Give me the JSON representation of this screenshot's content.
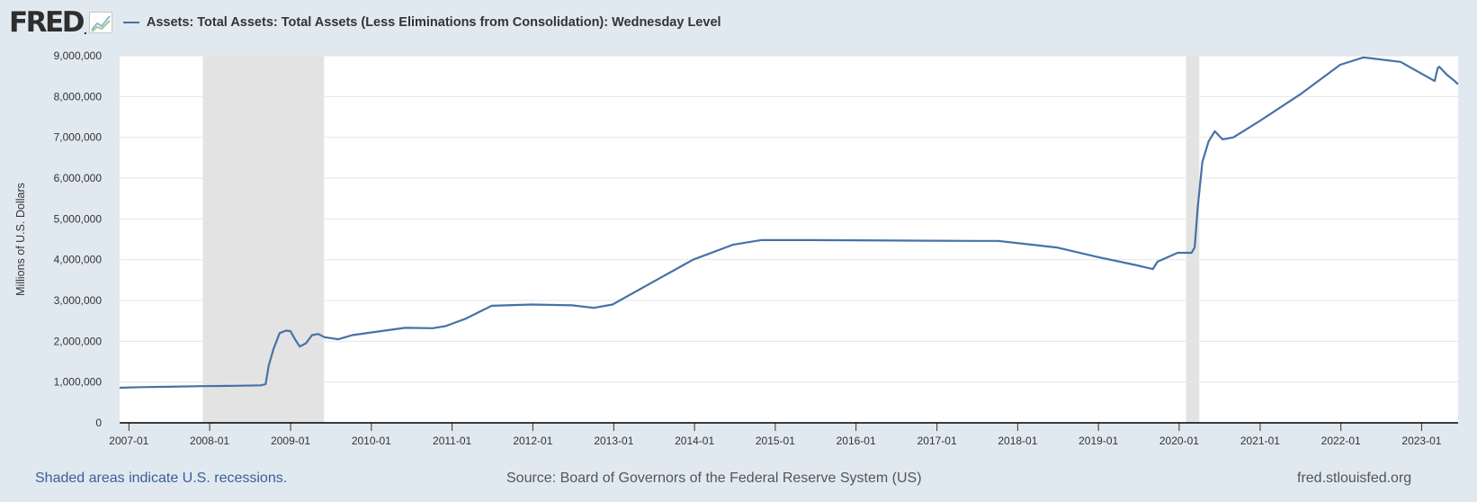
{
  "logo": {
    "text": "FRED",
    "dot": "."
  },
  "legend": {
    "label": "Assets: Total Assets: Total Assets (Less Eliminations from Consolidation): Wednesday Level"
  },
  "footer": {
    "recessions": "Shaded areas indicate U.S. recessions.",
    "source": "Source: Board of Governors of the Federal Reserve System (US)",
    "url": "fred.stlouisfed.org"
  },
  "colors": {
    "line": "#4572a7",
    "recession": "#e3e3e3",
    "background": "#e1e9f0",
    "plot": "#ffffff",
    "grid": "#e6e6e6",
    "axis": "#000000"
  },
  "chart_data": {
    "type": "line",
    "title": "",
    "xlabel": "",
    "ylabel": "Millions of U.S. Dollars",
    "ylim": [
      0,
      9000000
    ],
    "xlim": [
      "2006-11-20",
      "2023-06-15"
    ],
    "yticks": [
      {
        "value": 0,
        "label": "0"
      },
      {
        "value": 1000000,
        "label": "1,000,000"
      },
      {
        "value": 2000000,
        "label": "2,000,000"
      },
      {
        "value": 3000000,
        "label": "3,000,000"
      },
      {
        "value": 4000000,
        "label": "4,000,000"
      },
      {
        "value": 5000000,
        "label": "5,000,000"
      },
      {
        "value": 6000000,
        "label": "6,000,000"
      },
      {
        "value": 7000000,
        "label": "7,000,000"
      },
      {
        "value": 8000000,
        "label": "8,000,000"
      },
      {
        "value": 9000000,
        "label": "9,000,000"
      }
    ],
    "xticks": [
      {
        "date": "2007-01-01",
        "label": "2007-01"
      },
      {
        "date": "2008-01-01",
        "label": "2008-01"
      },
      {
        "date": "2009-01-01",
        "label": "2009-01"
      },
      {
        "date": "2010-01-01",
        "label": "2010-01"
      },
      {
        "date": "2011-01-01",
        "label": "2011-01"
      },
      {
        "date": "2012-01-01",
        "label": "2012-01"
      },
      {
        "date": "2013-01-01",
        "label": "2013-01"
      },
      {
        "date": "2014-01-01",
        "label": "2014-01"
      },
      {
        "date": "2015-01-01",
        "label": "2015-01"
      },
      {
        "date": "2016-01-01",
        "label": "2016-01"
      },
      {
        "date": "2017-01-01",
        "label": "2017-01"
      },
      {
        "date": "2018-01-01",
        "label": "2018-01"
      },
      {
        "date": "2019-01-01",
        "label": "2019-01"
      },
      {
        "date": "2020-01-01",
        "label": "2020-01"
      },
      {
        "date": "2021-01-01",
        "label": "2021-01"
      },
      {
        "date": "2022-01-01",
        "label": "2022-01"
      },
      {
        "date": "2023-01-01",
        "label": "2023-01"
      }
    ],
    "recessions": [
      {
        "start": "2007-12-01",
        "end": "2009-06-01"
      },
      {
        "start": "2020-02-01",
        "end": "2020-04-01"
      }
    ],
    "grid": true,
    "series": [
      {
        "points": [
          [
            "2006-11-20",
            860000
          ],
          [
            "2007-03-01",
            875000
          ],
          [
            "2007-07-01",
            885000
          ],
          [
            "2007-12-01",
            900000
          ],
          [
            "2008-03-01",
            905000
          ],
          [
            "2008-06-01",
            910000
          ],
          [
            "2008-08-20",
            920000
          ],
          [
            "2008-09-10",
            950000
          ],
          [
            "2008-09-24",
            1400000
          ],
          [
            "2008-10-15",
            1800000
          ],
          [
            "2008-11-12",
            2200000
          ],
          [
            "2008-12-10",
            2260000
          ],
          [
            "2008-12-31",
            2250000
          ],
          [
            "2009-01-21",
            2050000
          ],
          [
            "2009-02-11",
            1870000
          ],
          [
            "2009-03-11",
            1950000
          ],
          [
            "2009-04-08",
            2150000
          ],
          [
            "2009-05-06",
            2180000
          ],
          [
            "2009-06-03",
            2100000
          ],
          [
            "2009-08-05",
            2050000
          ],
          [
            "2009-10-07",
            2150000
          ],
          [
            "2010-01-06",
            2220000
          ],
          [
            "2010-06-02",
            2330000
          ],
          [
            "2010-10-06",
            2320000
          ],
          [
            "2010-12-01",
            2370000
          ],
          [
            "2011-03-02",
            2550000
          ],
          [
            "2011-06-29",
            2870000
          ],
          [
            "2011-12-28",
            2900000
          ],
          [
            "2012-06-27",
            2880000
          ],
          [
            "2012-10-03",
            2820000
          ],
          [
            "2012-12-26",
            2900000
          ],
          [
            "2013-06-26",
            3450000
          ],
          [
            "2013-12-25",
            4000000
          ],
          [
            "2014-06-25",
            4370000
          ],
          [
            "2014-10-29",
            4480000
          ],
          [
            "2015-06-24",
            4480000
          ],
          [
            "2016-06-29",
            4470000
          ],
          [
            "2017-06-28",
            4460000
          ],
          [
            "2017-10-04",
            4460000
          ],
          [
            "2018-06-27",
            4300000
          ],
          [
            "2019-01-02",
            4060000
          ],
          [
            "2019-06-26",
            3860000
          ],
          [
            "2019-09-04",
            3770000
          ],
          [
            "2019-09-25",
            3950000
          ],
          [
            "2019-12-25",
            4170000
          ],
          [
            "2020-02-26",
            4170000
          ],
          [
            "2020-03-11",
            4300000
          ],
          [
            "2020-03-25",
            5300000
          ],
          [
            "2020-04-15",
            6400000
          ],
          [
            "2020-05-13",
            6900000
          ],
          [
            "2020-06-10",
            7150000
          ],
          [
            "2020-07-15",
            6950000
          ],
          [
            "2020-09-02",
            7000000
          ],
          [
            "2020-12-30",
            7400000
          ],
          [
            "2021-06-30",
            8050000
          ],
          [
            "2021-12-29",
            8780000
          ],
          [
            "2022-04-13",
            8960000
          ],
          [
            "2022-09-28",
            8850000
          ],
          [
            "2023-03-01",
            8380000
          ],
          [
            "2023-03-15",
            8700000
          ],
          [
            "2023-03-22",
            8730000
          ],
          [
            "2023-04-26",
            8530000
          ],
          [
            "2023-05-31",
            8380000
          ],
          [
            "2023-06-14",
            8300000
          ]
        ]
      }
    ]
  }
}
